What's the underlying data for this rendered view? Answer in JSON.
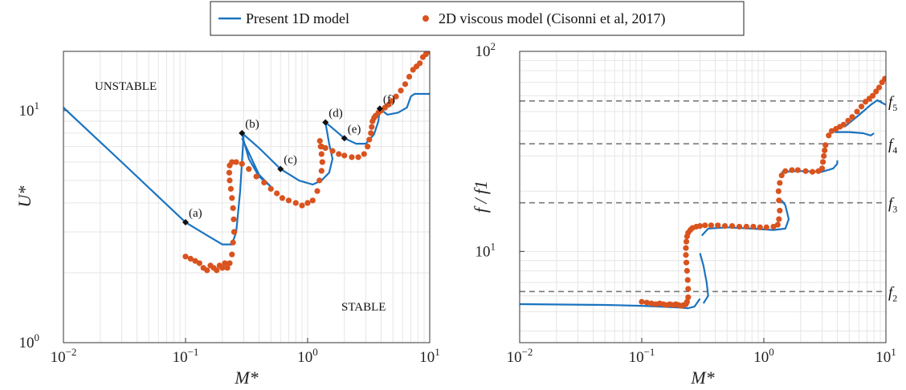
{
  "legend": {
    "entries": [
      {
        "label": "Present 1D model",
        "style": "line",
        "color": "#1a73c0"
      },
      {
        "label": "2D viscous model (Cisonni et al, 2017)",
        "style": "marker",
        "color": "#d9531e"
      }
    ]
  },
  "colors": {
    "line": "#1a73c0",
    "dots": "#d9531e",
    "grid": "#e6e6e6",
    "axis": "#333333",
    "dashed": "#7a7a7a"
  },
  "chart_data": [
    {
      "type": "line",
      "panel": "left",
      "xlabel": "M*",
      "ylabel": "U*",
      "xscale": "log",
      "yscale": "log",
      "xlim": [
        0.01,
        10
      ],
      "ylim": [
        1,
        18
      ],
      "grid": true,
      "xticks": [
        {
          "value": 0.01,
          "base": "10",
          "exp": "−2"
        },
        {
          "value": 0.1,
          "base": "10",
          "exp": "−1"
        },
        {
          "value": 1,
          "base": "10",
          "exp": "0"
        },
        {
          "value": 10,
          "base": "10",
          "exp": "1"
        }
      ],
      "yticks": [
        {
          "value": 1,
          "base": "10",
          "exp": "0"
        },
        {
          "value": 10,
          "base": "10",
          "exp": "1"
        }
      ],
      "annotations": [
        "UNSTABLE",
        "STABLE"
      ],
      "points": [
        {
          "label": "(a)",
          "x": 0.1,
          "y": 3.3
        },
        {
          "label": "(b)",
          "x": 0.29,
          "y": 8.0
        },
        {
          "label": "(c)",
          "x": 0.6,
          "y": 5.6
        },
        {
          "label": "(d)",
          "x": 1.4,
          "y": 8.9
        },
        {
          "label": "(e)",
          "x": 2.0,
          "y": 7.6
        },
        {
          "label": "(f)",
          "x": 3.9,
          "y": 10.2
        }
      ],
      "series": [
        {
          "name": "Present 1D model",
          "kind": "line",
          "branches": [
            [
              [
                0.01,
                10.3
              ],
              [
                0.03,
                6.0
              ],
              [
                0.1,
                3.3
              ],
              [
                0.15,
                2.9
              ],
              [
                0.2,
                2.65
              ],
              [
                0.24,
                2.65
              ],
              [
                0.26,
                3.0
              ],
              [
                0.28,
                4.5
              ],
              [
                0.3,
                8.0
              ]
            ],
            [
              [
                0.29,
                8.0
              ],
              [
                0.3,
                7.4
              ],
              [
                0.33,
                6.2
              ],
              [
                0.4,
                5.2
              ],
              [
                0.5,
                4.7
              ],
              [
                0.4,
                5.3
              ],
              [
                0.29,
                7.6
              ]
            ],
            [
              [
                0.29,
                8.0
              ],
              [
                0.4,
                6.9
              ],
              [
                0.6,
                5.6
              ],
              [
                0.85,
                5.0
              ],
              [
                1.1,
                4.8
              ],
              [
                1.3,
                5.0
              ],
              [
                1.5,
                5.4
              ],
              [
                1.6,
                6.2
              ],
              [
                1.5,
                7.2
              ],
              [
                1.4,
                8.9
              ]
            ],
            [
              [
                1.4,
                8.9
              ],
              [
                1.6,
                8.4
              ],
              [
                2.0,
                7.6
              ],
              [
                2.5,
                7.2
              ],
              [
                3.0,
                7.2
              ],
              [
                3.5,
                7.9
              ],
              [
                3.8,
                9.0
              ],
              [
                3.9,
                10.2
              ]
            ],
            [
              [
                3.9,
                10.2
              ],
              [
                4.5,
                9.6
              ],
              [
                5.5,
                9.8
              ],
              [
                6.5,
                10.3
              ],
              [
                7.0,
                11.5
              ],
              [
                7.5,
                11.8
              ],
              [
                10,
                11.8
              ]
            ]
          ]
        },
        {
          "name": "2D viscous model (Cisonni et al, 2017)",
          "kind": "scatter",
          "x": [
            0.1,
            0.11,
            0.12,
            0.13,
            0.14,
            0.15,
            0.16,
            0.17,
            0.18,
            0.19,
            0.2,
            0.21,
            0.22,
            0.23,
            0.24,
            0.245,
            0.25,
            0.248,
            0.245,
            0.24,
            0.235,
            0.23,
            0.228,
            0.23,
            0.24,
            0.26,
            0.29,
            0.33,
            0.38,
            0.44,
            0.5,
            0.56,
            0.62,
            0.7,
            0.8,
            0.9,
            1.0,
            1.1,
            1.2,
            1.25,
            1.3,
            1.32,
            1.3,
            1.28,
            1.26,
            1.3,
            1.4,
            1.6,
            1.8,
            2.0,
            2.3,
            2.6,
            2.9,
            3.1,
            3.2,
            3.3,
            3.35,
            3.4,
            3.5,
            3.6,
            3.8,
            4.0,
            4.3,
            4.6,
            4.9,
            5.3,
            5.8,
            6.3,
            6.8,
            7.3,
            7.8,
            8.3,
            8.8,
            9.3,
            9.8
          ],
          "y": [
            2.35,
            2.3,
            2.25,
            2.2,
            2.1,
            2.05,
            2.15,
            2.1,
            2.05,
            2.15,
            2.1,
            2.2,
            2.1,
            2.2,
            2.4,
            2.7,
            3.0,
            3.4,
            3.8,
            4.2,
            4.6,
            5.0,
            5.4,
            5.8,
            6.0,
            6.0,
            5.9,
            5.6,
            5.2,
            4.9,
            4.6,
            4.4,
            4.2,
            4.1,
            4.0,
            3.9,
            4.0,
            4.1,
            4.5,
            5.0,
            5.5,
            6.0,
            6.5,
            7.0,
            7.4,
            7.0,
            6.9,
            6.7,
            6.5,
            6.4,
            6.3,
            6.3,
            6.5,
            7.0,
            7.5,
            8.0,
            8.5,
            9.0,
            9.3,
            9.5,
            9.8,
            10.0,
            10.3,
            10.6,
            11.0,
            11.5,
            12.2,
            13.0,
            14.0,
            15.0,
            15.5,
            16.0,
            17.0,
            17.5,
            18.0
          ]
        }
      ]
    },
    {
      "type": "line",
      "panel": "right",
      "xlabel": "M*",
      "ylabel": "f / f1",
      "xscale": "log",
      "yscale": "log",
      "xlim": [
        0.01,
        10
      ],
      "ylim": [
        3.5,
        100
      ],
      "grid": true,
      "xticks": [
        {
          "value": 0.01,
          "base": "10",
          "exp": "−2"
        },
        {
          "value": 0.1,
          "base": "10",
          "exp": "−1"
        },
        {
          "value": 1,
          "base": "10",
          "exp": "0"
        },
        {
          "value": 10,
          "base": "10",
          "exp": "1"
        }
      ],
      "yticks": [
        {
          "value": 10,
          "base": "10",
          "exp": "1"
        },
        {
          "value": 100,
          "base": "10",
          "exp": "2"
        }
      ],
      "reference_lines": [
        {
          "label": "f",
          "sub": "2",
          "y": 6.3
        },
        {
          "label": "f",
          "sub": "3",
          "y": 17.5
        },
        {
          "label": "f",
          "sub": "4",
          "y": 34.5
        },
        {
          "label": "f",
          "sub": "5",
          "y": 56.5
        }
      ],
      "series": [
        {
          "name": "Present 1D model",
          "kind": "line",
          "branches": [
            [
              [
                0.01,
                5.45
              ],
              [
                0.05,
                5.4
              ],
              [
                0.1,
                5.35
              ],
              [
                0.2,
                5.25
              ],
              [
                0.24,
                5.2
              ],
              [
                0.27,
                5.3
              ],
              [
                0.3,
                5.8
              ]
            ],
            [
              [
                0.3,
                9.8
              ],
              [
                0.32,
                8.5
              ],
              [
                0.34,
                7.0
              ],
              [
                0.35,
                6.0
              ],
              [
                0.32,
                5.5
              ]
            ],
            [
              [
                0.31,
                12.0
              ],
              [
                0.35,
                13.0
              ],
              [
                0.5,
                13.2
              ],
              [
                0.8,
                13.0
              ],
              [
                1.2,
                12.8
              ],
              [
                1.5,
                13.0
              ],
              [
                1.6,
                14.5
              ],
              [
                1.5,
                17.0
              ],
              [
                1.4,
                18.0
              ]
            ],
            [
              [
                1.4,
                25.0
              ],
              [
                2.0,
                25.2
              ],
              [
                3.0,
                25.0
              ],
              [
                3.7,
                26.0
              ],
              [
                4.0,
                27.5
              ],
              [
                4.0,
                28.5
              ]
            ],
            [
              [
                3.8,
                39.5
              ],
              [
                5.0,
                39.5
              ],
              [
                6.5,
                39.0
              ],
              [
                7.5,
                38.0
              ],
              [
                8.0,
                39.0
              ]
            ],
            [
              [
                4.6,
                42.0
              ],
              [
                6.0,
                48.0
              ],
              [
                7.5,
                54.0
              ],
              [
                8.5,
                57.0
              ],
              [
                10,
                54.0
              ]
            ]
          ]
        },
        {
          "name": "2D viscous model (Cisonni et al, 2017)",
          "kind": "scatter",
          "x": [
            0.1,
            0.11,
            0.12,
            0.13,
            0.14,
            0.15,
            0.16,
            0.17,
            0.18,
            0.19,
            0.2,
            0.21,
            0.22,
            0.23,
            0.235,
            0.24,
            0.24,
            0.238,
            0.235,
            0.232,
            0.23,
            0.23,
            0.232,
            0.235,
            0.24,
            0.25,
            0.26,
            0.28,
            0.3,
            0.33,
            0.37,
            0.42,
            0.48,
            0.55,
            0.63,
            0.72,
            0.82,
            0.93,
            1.05,
            1.2,
            1.3,
            1.33,
            1.35,
            1.33,
            1.32,
            1.35,
            1.4,
            1.5,
            1.7,
            1.9,
            2.2,
            2.5,
            2.8,
            3.0,
            3.05,
            3.1,
            3.15,
            3.2,
            3.4,
            3.6,
            3.9,
            4.2,
            4.5,
            4.9,
            5.3,
            5.8,
            6.3,
            6.8,
            7.3,
            7.8,
            8.3,
            8.8,
            9.3,
            9.8
          ],
          "y": [
            5.6,
            5.55,
            5.5,
            5.45,
            5.5,
            5.45,
            5.4,
            5.45,
            5.4,
            5.45,
            5.4,
            5.35,
            5.4,
            5.45,
            5.6,
            5.9,
            6.5,
            7.2,
            8.0,
            8.8,
            9.6,
            10.4,
            11.2,
            11.9,
            12.4,
            12.8,
            13.1,
            13.3,
            13.4,
            13.5,
            13.5,
            13.5,
            13.4,
            13.4,
            13.3,
            13.3,
            13.3,
            13.2,
            13.2,
            13.3,
            13.6,
            14.5,
            16.0,
            18.0,
            20.0,
            22.0,
            24.0,
            25.2,
            25.5,
            25.5,
            25.2,
            25.0,
            25.2,
            26.0,
            28.0,
            30.0,
            32.0,
            34.0,
            38.0,
            40.0,
            41.0,
            42.0,
            43.0,
            45.0,
            47.0,
            50.0,
            53.0,
            56.0,
            58.0,
            60.0,
            63.0,
            66.0,
            70.0,
            73.0
          ]
        }
      ]
    }
  ]
}
